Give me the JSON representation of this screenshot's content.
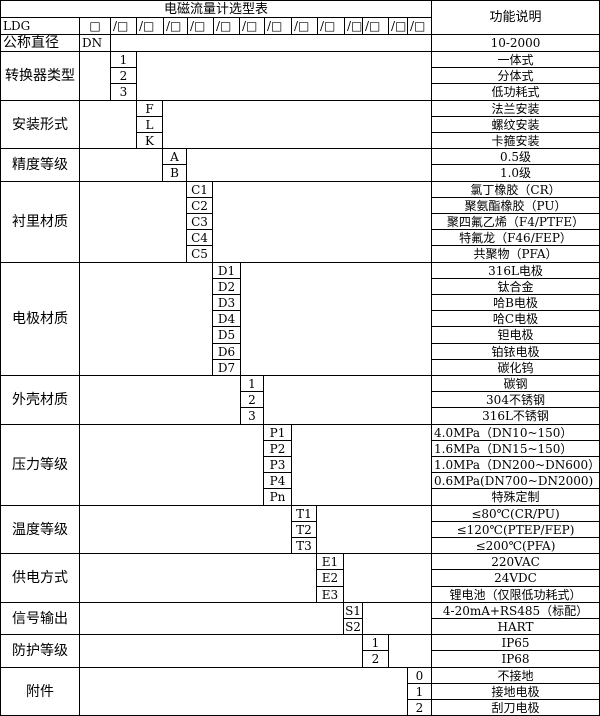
{
  "title": "电磁流量计选型表",
  "function_header": "功能说明",
  "model_prefix": "LDG",
  "first_box": "□",
  "slot_boxes": [
    "/□",
    "/□",
    "/□",
    "/□",
    "/□",
    "/□",
    "/□",
    "/□",
    "/□",
    "/□",
    "/□",
    "/□",
    "/□"
  ],
  "nominal": {
    "label": "公称直径",
    "code": "DN",
    "desc": "10-2000"
  },
  "groups": [
    {
      "label": "转换器类型",
      "codes": [
        "1",
        "2",
        "3"
      ],
      "descs": [
        "一体式",
        "分体式",
        "低功耗式"
      ]
    },
    {
      "label": "安装形式",
      "codes": [
        "F",
        "L",
        "K"
      ],
      "descs": [
        "法兰安装",
        "螺纹安装",
        "卡箍安装"
      ]
    },
    {
      "label": "精度等级",
      "codes": [
        "A",
        "B"
      ],
      "descs": [
        "0.5级",
        "1.0级"
      ]
    },
    {
      "label": "衬里材质",
      "codes": [
        "C1",
        "C2",
        "C3",
        "C4",
        "C5"
      ],
      "descs": [
        "氯丁橡胶（CR）",
        "聚氨酯橡胶（PU）",
        "聚四氟乙烯（F4/PTFE）",
        "特氟龙（F46/FEP）",
        "共聚物（PFA）"
      ]
    },
    {
      "label": "电极材质",
      "codes": [
        "D1",
        "D2",
        "D3",
        "D4",
        "D5",
        "D6",
        "D7"
      ],
      "descs": [
        "316L电极",
        "钛合金",
        "哈B电极",
        "哈C电极",
        "钽电极",
        "铂铱电极",
        "碳化钨"
      ]
    },
    {
      "label": "外壳材质",
      "codes": [
        "1",
        "2",
        "3"
      ],
      "descs": [
        "碳钢",
        "304不锈钢",
        "316L不锈钢"
      ]
    },
    {
      "label": "压力等级",
      "codes": [
        "P1",
        "P2",
        "P3",
        "P4",
        "Pn"
      ],
      "descs": [
        "4.0MPa（DN10~150）",
        "1.6MPa（DN15~150）",
        "1.0MPa（DN200~DN600）",
        "0.6MPa(DN700~DN2000)",
        "特殊定制"
      ],
      "desc_align": [
        "left",
        "left",
        "left",
        "left",
        "center"
      ]
    },
    {
      "label": "温度等级",
      "codes": [
        "T1",
        "T2",
        "T3"
      ],
      "descs": [
        "≤80℃(CR/PU)",
        "≤120℃(PTEP/FEP)",
        "≤200℃(PFA)"
      ]
    },
    {
      "label": "供电方式",
      "codes": [
        "E1",
        "E2",
        "E3"
      ],
      "descs": [
        "220VAC",
        "24VDC",
        "锂电池（仅限低功耗式）"
      ]
    },
    {
      "label": "信号输出",
      "codes": [
        "S1",
        "S2"
      ],
      "descs": [
        "4-20mA+RS485（标配）",
        "HART"
      ]
    },
    {
      "label": "防护等级",
      "codes": [
        "1",
        "2"
      ],
      "descs": [
        "IP65",
        "IP68"
      ]
    },
    {
      "label": "附件",
      "codes": [
        "0",
        "1",
        "2"
      ],
      "descs": [
        "不接地",
        "接地电极",
        "刮刀电极"
      ]
    }
  ]
}
